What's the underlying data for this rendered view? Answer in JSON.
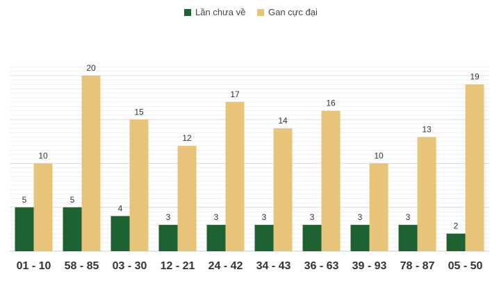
{
  "chart_data": {
    "type": "bar",
    "title": "",
    "xlabel": "",
    "ylabel": "",
    "ylim": [
      0,
      21
    ],
    "grid": true,
    "legend_position": "top-center",
    "categories": [
      "01 - 10",
      "58 - 85",
      "03 - 30",
      "12 - 21",
      "24 - 42",
      "34 - 43",
      "36 - 63",
      "39 - 93",
      "78 - 87",
      "05 - 50"
    ],
    "series": [
      {
        "name": "Lần chưa về",
        "color": "#1f6232",
        "values": [
          5,
          5,
          4,
          3,
          3,
          3,
          3,
          3,
          3,
          2
        ]
      },
      {
        "name": "Gan cực đại",
        "color": "#e8c47a",
        "values": [
          10,
          20,
          15,
          12,
          17,
          14,
          16,
          10,
          13,
          19
        ]
      }
    ]
  }
}
